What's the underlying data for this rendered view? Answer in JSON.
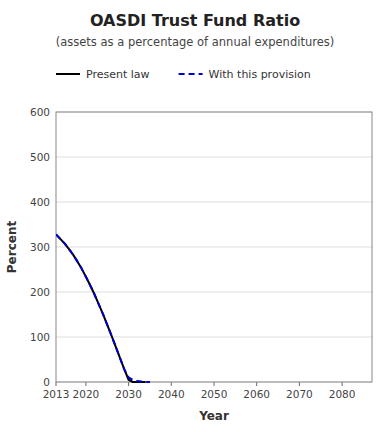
{
  "chart_data": {
    "type": "line",
    "title": "OASDI Trust Fund Ratio",
    "subtitle": "(assets as a percentage of annual expenditures)",
    "x_label": "Year",
    "y_label": "Percent",
    "xlim": [
      2013,
      2087
    ],
    "ylim": [
      0,
      600
    ],
    "xticks": [
      2013,
      2020,
      2030,
      2040,
      2050,
      2060,
      2070,
      2080
    ],
    "yticks": [
      0,
      100,
      200,
      300,
      400,
      500,
      600
    ],
    "grid": true,
    "legend": "top",
    "series": [
      {
        "name": "Present law",
        "color": "#000000",
        "line_style": "solid",
        "x": [
          2013,
          2014,
          2015,
          2016,
          2017,
          2018,
          2019,
          2020,
          2021,
          2022,
          2023,
          2024,
          2025,
          2026,
          2027,
          2028,
          2029,
          2030,
          2031,
          2032,
          2033,
          2034
        ],
        "values": [
          328,
          318,
          308,
          296,
          283,
          268,
          252,
          234,
          215,
          195,
          173,
          151,
          127,
          103,
          78,
          53,
          28,
          5,
          0,
          0,
          0,
          0
        ]
      },
      {
        "name": "With this provision",
        "color": "#0000cc",
        "line_style": "dashed",
        "x": [
          2013,
          2014,
          2015,
          2016,
          2017,
          2018,
          2019,
          2020,
          2021,
          2022,
          2023,
          2024,
          2025,
          2026,
          2027,
          2028,
          2029,
          2030,
          2031,
          2032,
          2033,
          2034,
          2035
        ],
        "values": [
          328,
          318,
          308,
          296,
          283,
          268,
          252,
          234,
          215,
          195,
          173,
          151,
          127,
          103,
          78,
          53,
          28,
          10,
          5,
          2,
          1,
          0,
          0
        ]
      }
    ]
  }
}
